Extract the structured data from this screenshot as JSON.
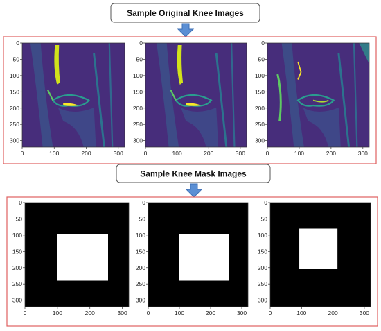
{
  "labels": {
    "original": "Sample Original Knee Images",
    "mask": "Sample Knee Mask Images"
  },
  "panels": {
    "xlim": [
      0,
      320
    ],
    "ylim": [
      0,
      320
    ],
    "xticks": [
      0,
      100,
      200,
      300
    ],
    "yticks": [
      0,
      50,
      100,
      150,
      200,
      250,
      300
    ]
  }
}
